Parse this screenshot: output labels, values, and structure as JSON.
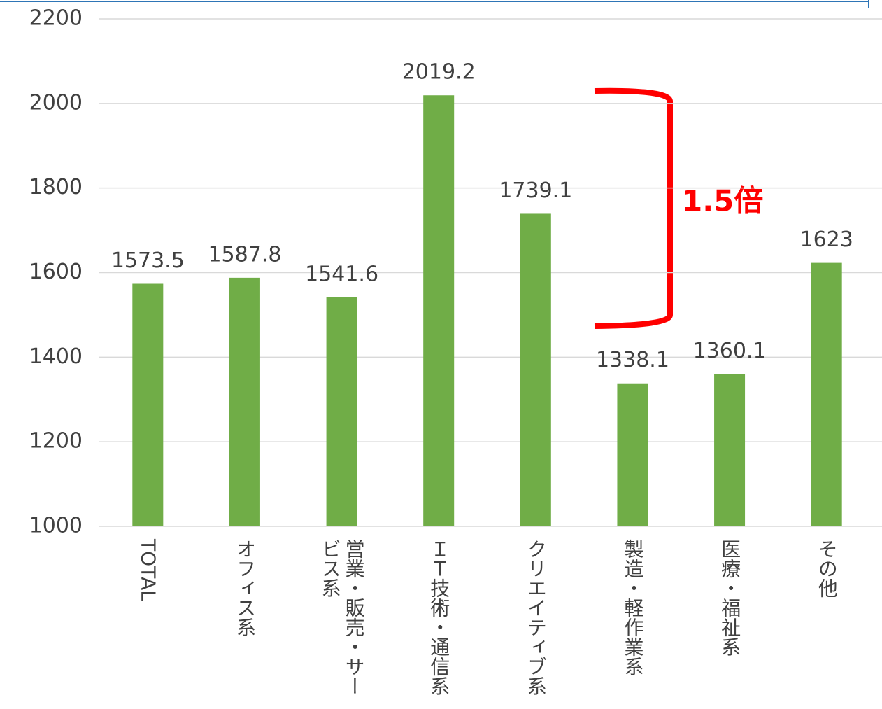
{
  "chart_data": {
    "type": "bar",
    "categories": [
      "TOTAL",
      "オフィス系",
      "営業・販売・サービス系",
      "ＩＴ技術・通信系",
      "クリエイティブ系",
      "製造・軽作業系",
      "医療・福祉系",
      "その他"
    ],
    "values": [
      1573.5,
      1587.8,
      1541.6,
      2019.2,
      1739.1,
      1338.1,
      1360.1,
      1623
    ],
    "color": "#70ad47",
    "ylim": [
      1000,
      2200
    ],
    "yticks": [
      1000,
      1200,
      1400,
      1600,
      1800,
      2000,
      2200
    ],
    "grid": true,
    "annotation": "1.5倍"
  }
}
